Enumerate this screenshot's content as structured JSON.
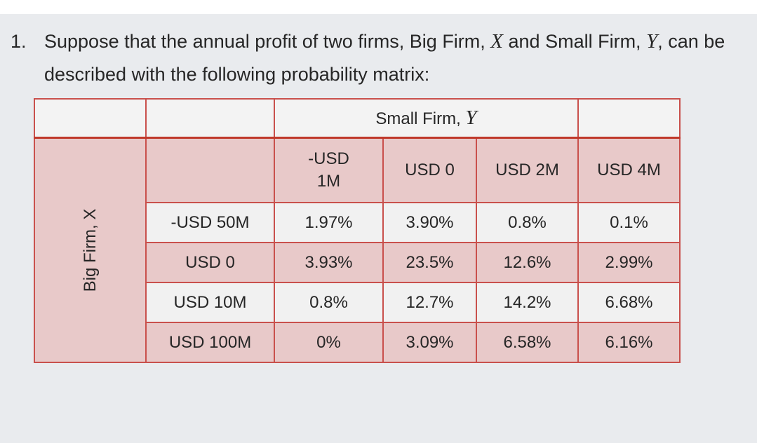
{
  "question": {
    "number": "1.",
    "parts": [
      "Suppose that the annual profit of two firms, Big Firm, ",
      "X",
      " and Small Firm, ",
      "Y",
      ", can be described with the following probability matrix:"
    ]
  },
  "table": {
    "column_group_label": [
      "Small Firm, ",
      "Y"
    ],
    "row_group_label": "Big Firm, X",
    "columns": [
      "-USD 1M",
      "USD 0",
      "USD 2M",
      "USD 4M"
    ],
    "rows": [
      {
        "label": "-USD 50M",
        "cells": [
          "1.97%",
          "3.90%",
          "0.8%",
          "0.1%"
        ]
      },
      {
        "label": "USD 0",
        "cells": [
          "3.93%",
          "23.5%",
          "12.6%",
          "2.99%"
        ]
      },
      {
        "label": "USD 10M",
        "cells": [
          "0.8%",
          "12.7%",
          "14.2%",
          "6.68%"
        ]
      },
      {
        "label": "USD 100M",
        "cells": [
          "0%",
          "3.09%",
          "6.58%",
          "6.16%"
        ]
      }
    ]
  }
}
